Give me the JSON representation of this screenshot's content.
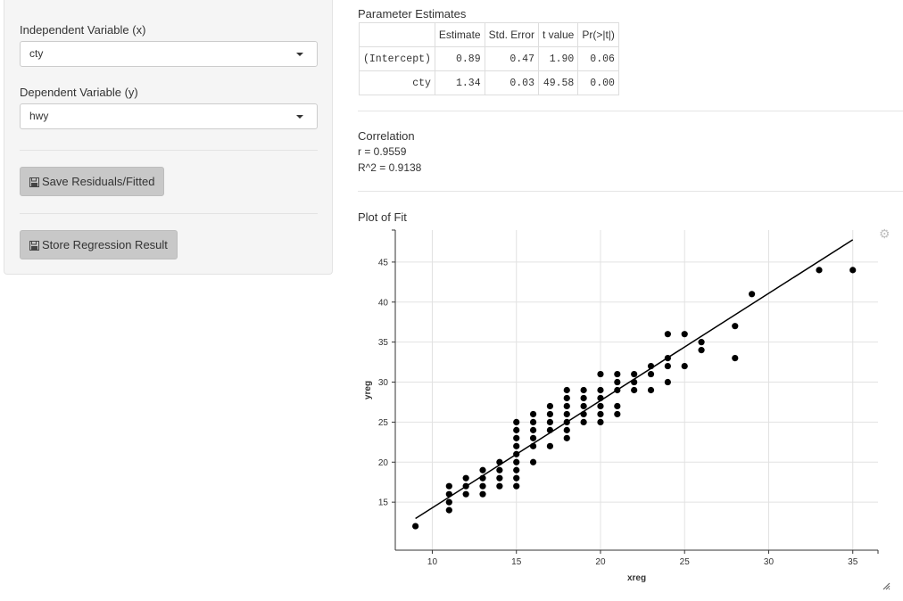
{
  "sidebar": {
    "x_label": "Independent Variable (x)",
    "x_value": "cty",
    "y_label": "Dependent Variable (y)",
    "y_value": "hwy",
    "save_button": "Save Residuals/Fitted",
    "store_button": "Store Regression Result"
  },
  "estimates": {
    "title": "Parameter Estimates",
    "headers": [
      "",
      "Estimate",
      "Std. Error",
      "t value",
      "Pr(>|t|)"
    ],
    "rows": [
      [
        "(Intercept)",
        "0.89",
        "0.47",
        "1.90",
        "0.06"
      ],
      [
        "cty",
        "1.34",
        "0.03",
        "49.58",
        "0.00"
      ]
    ]
  },
  "correlation": {
    "title": "Correlation",
    "r": "r = 0.9559",
    "r2": "R^2 = 0.9138"
  },
  "plot": {
    "title": "Plot of Fit",
    "icon": "gear-icon"
  },
  "chart_data": {
    "type": "scatter",
    "xlabel": "xreg",
    "ylabel": "yreg",
    "xlim": [
      7.8,
      36.5
    ],
    "ylim": [
      9,
      49
    ],
    "xticks": [
      10,
      15,
      20,
      25,
      30,
      35
    ],
    "yticks": [
      15,
      20,
      25,
      30,
      35,
      40,
      45
    ],
    "grid": true,
    "fit_line": {
      "intercept": 0.89,
      "slope": 1.34,
      "x_range": [
        9,
        35
      ]
    },
    "points": [
      [
        9,
        12
      ],
      [
        11,
        14
      ],
      [
        11,
        15
      ],
      [
        11,
        16
      ],
      [
        11,
        17
      ],
      [
        12,
        16
      ],
      [
        12,
        17
      ],
      [
        12,
        18
      ],
      [
        13,
        16
      ],
      [
        13,
        17
      ],
      [
        13,
        18
      ],
      [
        13,
        19
      ],
      [
        14,
        17
      ],
      [
        14,
        18
      ],
      [
        14,
        19
      ],
      [
        14,
        20
      ],
      [
        15,
        17
      ],
      [
        15,
        18
      ],
      [
        15,
        19
      ],
      [
        15,
        20
      ],
      [
        15,
        21
      ],
      [
        15,
        22
      ],
      [
        15,
        23
      ],
      [
        15,
        24
      ],
      [
        15,
        25
      ],
      [
        16,
        20
      ],
      [
        16,
        22
      ],
      [
        16,
        23
      ],
      [
        16,
        24
      ],
      [
        16,
        25
      ],
      [
        16,
        26
      ],
      [
        17,
        22
      ],
      [
        17,
        24
      ],
      [
        17,
        25
      ],
      [
        17,
        26
      ],
      [
        17,
        27
      ],
      [
        18,
        23
      ],
      [
        18,
        24
      ],
      [
        18,
        25
      ],
      [
        18,
        26
      ],
      [
        18,
        27
      ],
      [
        18,
        28
      ],
      [
        18,
        29
      ],
      [
        19,
        25
      ],
      [
        19,
        26
      ],
      [
        19,
        27
      ],
      [
        19,
        28
      ],
      [
        19,
        29
      ],
      [
        20,
        25
      ],
      [
        20,
        26
      ],
      [
        20,
        27
      ],
      [
        20,
        28
      ],
      [
        20,
        29
      ],
      [
        20,
        31
      ],
      [
        21,
        26
      ],
      [
        21,
        27
      ],
      [
        21,
        29
      ],
      [
        21,
        30
      ],
      [
        21,
        31
      ],
      [
        22,
        29
      ],
      [
        22,
        30
      ],
      [
        22,
        31
      ],
      [
        23,
        29
      ],
      [
        23,
        31
      ],
      [
        23,
        32
      ],
      [
        24,
        30
      ],
      [
        24,
        32
      ],
      [
        24,
        33
      ],
      [
        24,
        36
      ],
      [
        25,
        32
      ],
      [
        25,
        36
      ],
      [
        26,
        34
      ],
      [
        26,
        35
      ],
      [
        28,
        33
      ],
      [
        28,
        37
      ],
      [
        29,
        41
      ],
      [
        33,
        44
      ],
      [
        35,
        44
      ]
    ]
  }
}
